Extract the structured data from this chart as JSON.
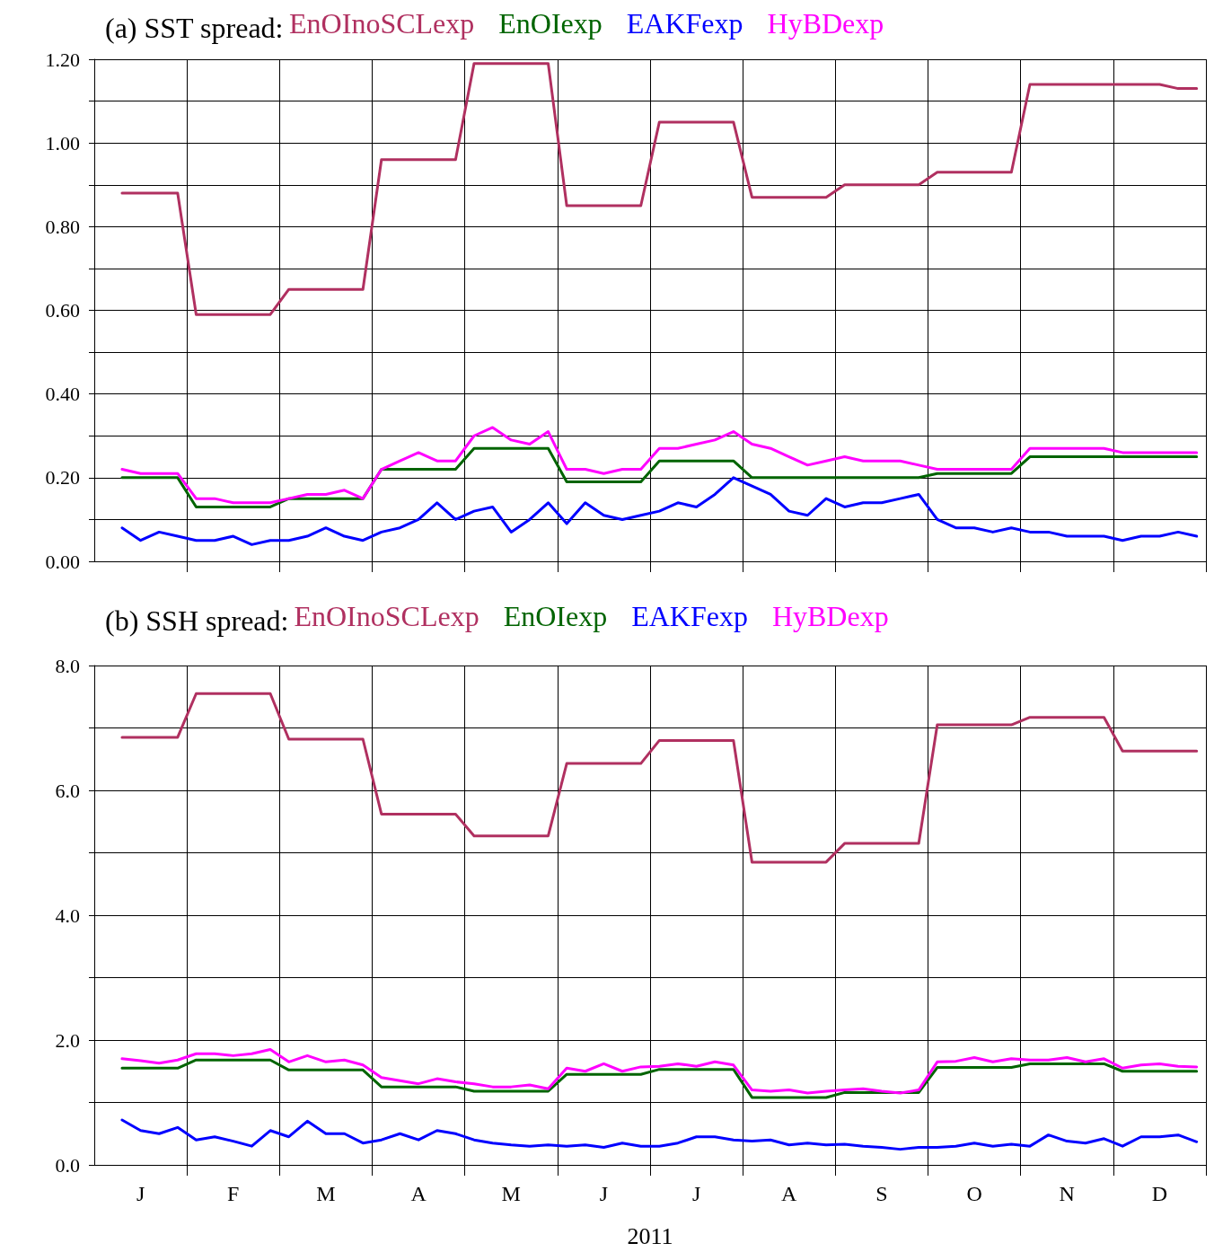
{
  "chart_data": [
    {
      "type": "line",
      "title": "(a) SST spread:",
      "legend": "top",
      "grid": true,
      "marker": "none",
      "line_style": "solid",
      "tick_labels": "y",
      "categories": [
        null,
        null,
        null,
        null,
        null,
        null,
        null,
        null,
        null,
        null,
        null,
        null,
        null,
        null,
        null,
        null,
        null,
        null,
        null,
        null,
        null,
        null,
        null,
        null,
        null,
        null,
        null,
        null,
        null,
        null,
        null,
        null,
        null,
        null,
        null,
        null,
        null,
        null,
        null,
        null,
        null,
        null,
        null,
        null,
        null,
        null,
        null,
        null,
        null,
        null,
        null,
        null,
        null,
        null,
        null,
        null,
        null,
        null,
        null,
        null
      ],
      "ylim": [
        0,
        1.2
      ],
      "yticks": [
        {
          "value": 0,
          "label": "0.00"
        },
        {
          "value": 0.1,
          "label": null
        },
        {
          "value": 0.2,
          "label": "0.20"
        },
        {
          "value": 0.3,
          "label": null
        },
        {
          "value": 0.4,
          "label": "0.40"
        },
        {
          "value": 0.5,
          "label": null
        },
        {
          "value": 0.6,
          "label": "0.60"
        },
        {
          "value": 0.7,
          "label": null
        },
        {
          "value": 0.8,
          "label": "0.80"
        },
        {
          "value": 0.9,
          "label": null
        },
        {
          "value": 1.0,
          "label": "1.00"
        },
        {
          "value": 1.1,
          "label": null
        },
        {
          "value": 1.2,
          "label": "1.20"
        }
      ],
      "series": [
        {
          "name": "EnOInoSCLexp",
          "color": "#b03060",
          "values": [
            null,
            0.88,
            0.88,
            0.88,
            0.88,
            0.59,
            0.59,
            0.59,
            0.59,
            0.59,
            0.65,
            0.65,
            0.65,
            0.65,
            0.65,
            0.96,
            0.96,
            0.96,
            0.96,
            0.96,
            1.19,
            1.19,
            1.19,
            1.19,
            1.19,
            0.85,
            0.85,
            0.85,
            0.85,
            0.85,
            1.05,
            1.05,
            1.05,
            1.05,
            1.05,
            0.87,
            0.87,
            0.87,
            0.87,
            0.87,
            0.9,
            0.9,
            0.9,
            0.9,
            0.9,
            0.93,
            0.93,
            0.93,
            0.93,
            0.93,
            1.14,
            1.14,
            1.14,
            1.14,
            1.14,
            1.14,
            1.14,
            1.14,
            1.13,
            1.13
          ]
        },
        {
          "name": "EnOIexp",
          "color": "#006400",
          "values": [
            null,
            0.2,
            0.2,
            0.2,
            0.2,
            0.13,
            0.13,
            0.13,
            0.13,
            0.13,
            0.15,
            0.15,
            0.15,
            0.15,
            0.15,
            0.22,
            0.22,
            0.22,
            0.22,
            0.22,
            0.27,
            0.27,
            0.27,
            0.27,
            0.27,
            0.19,
            0.19,
            0.19,
            0.19,
            0.19,
            0.24,
            0.24,
            0.24,
            0.24,
            0.24,
            0.2,
            0.2,
            0.2,
            0.2,
            0.2,
            0.2,
            0.2,
            0.2,
            0.2,
            0.2,
            0.21,
            0.21,
            0.21,
            0.21,
            0.21,
            0.25,
            0.25,
            0.25,
            0.25,
            0.25,
            0.25,
            0.25,
            0.25,
            0.25,
            0.25
          ]
        },
        {
          "name": "EAKFexp",
          "color": "#0000ff",
          "values": [
            null,
            0.08,
            0.05,
            0.07,
            0.06,
            0.05,
            0.05,
            0.06,
            0.04,
            0.05,
            0.05,
            0.06,
            0.08,
            0.06,
            0.05,
            0.07,
            0.08,
            0.1,
            0.14,
            0.1,
            0.12,
            0.13,
            0.07,
            0.1,
            0.14,
            0.09,
            0.14,
            0.11,
            0.1,
            0.11,
            0.12,
            0.14,
            0.13,
            0.16,
            0.2,
            0.18,
            0.16,
            0.12,
            0.11,
            0.15,
            0.13,
            0.14,
            0.14,
            0.15,
            0.16,
            0.1,
            0.08,
            0.08,
            0.07,
            0.08,
            0.07,
            0.07,
            0.06,
            0.06,
            0.06,
            0.05,
            0.06,
            0.06,
            0.07,
            0.06
          ]
        },
        {
          "name": "HyBDexp",
          "color": "#ff00ff",
          "values": [
            null,
            0.22,
            0.21,
            0.21,
            0.21,
            0.15,
            0.15,
            0.14,
            0.14,
            0.14,
            0.15,
            0.16,
            0.16,
            0.17,
            0.15,
            0.22,
            0.24,
            0.26,
            0.24,
            0.24,
            0.3,
            0.32,
            0.29,
            0.28,
            0.31,
            0.22,
            0.22,
            0.21,
            0.22,
            0.22,
            0.27,
            0.27,
            0.28,
            0.29,
            0.31,
            0.28,
            0.27,
            0.25,
            0.23,
            0.24,
            0.25,
            0.24,
            0.24,
            0.24,
            0.23,
            0.22,
            0.22,
            0.22,
            0.22,
            0.22,
            0.27,
            0.27,
            0.27,
            0.27,
            0.27,
            0.26,
            0.26,
            0.26,
            0.26,
            0.26
          ]
        }
      ]
    },
    {
      "type": "line",
      "title": "(b) SSH spread:",
      "legend": "top",
      "grid": true,
      "marker": "none",
      "line_style": "solid",
      "xlabel": "2011",
      "categories": [
        null,
        null,
        "J",
        null,
        null,
        null,
        null,
        "F",
        null,
        null,
        null,
        null,
        "M",
        null,
        null,
        null,
        null,
        "A",
        null,
        null,
        null,
        null,
        "M",
        null,
        null,
        null,
        null,
        "J",
        null,
        null,
        null,
        null,
        "J",
        null,
        null,
        null,
        null,
        "A",
        null,
        null,
        null,
        null,
        "S",
        null,
        null,
        null,
        null,
        "O",
        null,
        null,
        null,
        null,
        "N",
        null,
        null,
        null,
        null,
        "D",
        null,
        null
      ],
      "ylim": [
        0,
        8
      ],
      "yticks": [
        {
          "value": 0,
          "label": "0.0"
        },
        {
          "value": 1,
          "label": null
        },
        {
          "value": 2,
          "label": "2.0"
        },
        {
          "value": 3,
          "label": null
        },
        {
          "value": 4,
          "label": "4.0"
        },
        {
          "value": 5,
          "label": null
        },
        {
          "value": 6,
          "label": "6.0"
        },
        {
          "value": 7,
          "label": null
        },
        {
          "value": 8,
          "label": "8.0"
        }
      ],
      "series": [
        {
          "name": "EnOInoSCLexp",
          "color": "#b03060",
          "values": [
            null,
            6.85,
            6.85,
            6.85,
            6.85,
            7.55,
            7.55,
            7.55,
            7.55,
            7.55,
            6.82,
            6.82,
            6.82,
            6.82,
            6.82,
            5.62,
            5.62,
            5.62,
            5.62,
            5.62,
            5.27,
            5.27,
            5.27,
            5.27,
            5.27,
            6.43,
            6.43,
            6.43,
            6.43,
            6.43,
            6.8,
            6.8,
            6.8,
            6.8,
            6.8,
            4.85,
            4.85,
            4.85,
            4.85,
            4.85,
            5.15,
            5.15,
            5.15,
            5.15,
            5.15,
            7.05,
            7.05,
            7.05,
            7.05,
            7.05,
            7.17,
            7.17,
            7.17,
            7.17,
            7.17,
            6.63,
            6.63,
            6.63,
            6.63,
            6.63
          ]
        },
        {
          "name": "EnOIexp",
          "color": "#006400",
          "values": [
            null,
            1.55,
            1.55,
            1.55,
            1.55,
            1.68,
            1.68,
            1.68,
            1.68,
            1.68,
            1.52,
            1.52,
            1.52,
            1.52,
            1.52,
            1.25,
            1.25,
            1.25,
            1.25,
            1.25,
            1.18,
            1.18,
            1.18,
            1.18,
            1.18,
            1.45,
            1.45,
            1.45,
            1.45,
            1.45,
            1.53,
            1.53,
            1.53,
            1.53,
            1.53,
            1.08,
            1.08,
            1.08,
            1.08,
            1.08,
            1.16,
            1.16,
            1.16,
            1.16,
            1.16,
            1.56,
            1.56,
            1.56,
            1.56,
            1.56,
            1.62,
            1.62,
            1.62,
            1.62,
            1.62,
            1.5,
            1.5,
            1.5,
            1.5,
            1.5
          ]
        },
        {
          "name": "EAKFexp",
          "color": "#0000ff",
          "values": [
            null,
            0.72,
            0.55,
            0.5,
            0.6,
            0.4,
            0.45,
            0.38,
            0.3,
            0.55,
            0.45,
            0.7,
            0.5,
            0.5,
            0.35,
            0.4,
            0.5,
            0.4,
            0.55,
            0.5,
            0.4,
            0.35,
            0.32,
            0.3,
            0.32,
            0.3,
            0.32,
            0.28,
            0.35,
            0.3,
            0.3,
            0.35,
            0.45,
            0.45,
            0.4,
            0.38,
            0.4,
            0.32,
            0.35,
            0.32,
            0.33,
            0.3,
            0.28,
            0.25,
            0.28,
            0.28,
            0.3,
            0.35,
            0.3,
            0.33,
            0.3,
            0.48,
            0.38,
            0.35,
            0.42,
            0.3,
            0.45,
            0.45,
            0.48,
            0.37
          ]
        },
        {
          "name": "HyBDexp",
          "color": "#ff00ff",
          "values": [
            null,
            1.7,
            1.67,
            1.63,
            1.68,
            1.78,
            1.78,
            1.75,
            1.78,
            1.85,
            1.65,
            1.75,
            1.65,
            1.68,
            1.6,
            1.4,
            1.35,
            1.3,
            1.38,
            1.33,
            1.3,
            1.25,
            1.25,
            1.28,
            1.22,
            1.55,
            1.5,
            1.62,
            1.5,
            1.57,
            1.58,
            1.62,
            1.58,
            1.65,
            1.6,
            1.2,
            1.18,
            1.2,
            1.15,
            1.18,
            1.2,
            1.22,
            1.18,
            1.15,
            1.2,
            1.65,
            1.66,
            1.72,
            1.65,
            1.7,
            1.68,
            1.68,
            1.72,
            1.65,
            1.7,
            1.55,
            1.6,
            1.62,
            1.58,
            1.57
          ]
        }
      ]
    }
  ]
}
